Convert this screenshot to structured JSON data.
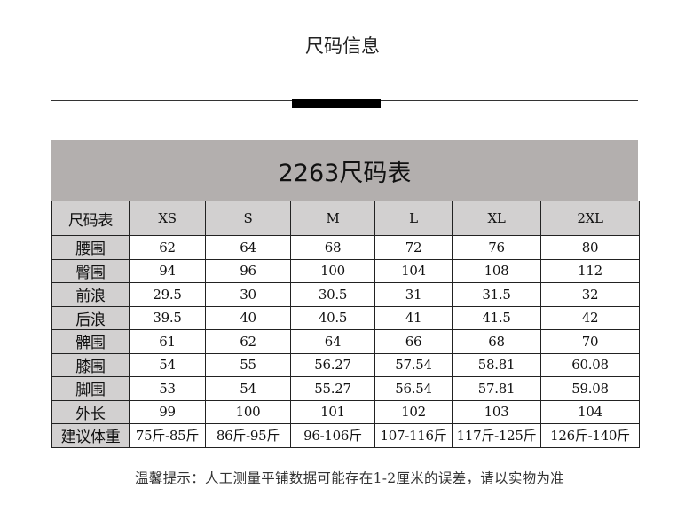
{
  "page": {
    "title": "尺码信息",
    "table_title": "2263尺码表",
    "footer_note": "温馨提示：人工测量平铺数据可能存在1-2厘米的误差，请以实物为准"
  },
  "table": {
    "header": [
      "尺码表",
      "XS",
      "S",
      "M",
      "L",
      "XL",
      "2XL"
    ],
    "rows": [
      [
        "腰围",
        "62",
        "64",
        "68",
        "72",
        "76",
        "80"
      ],
      [
        "臀围",
        "94",
        "96",
        "100",
        "104",
        "108",
        "112"
      ],
      [
        "前浪",
        "29.5",
        "30",
        "30.5",
        "31",
        "31.5",
        "32"
      ],
      [
        "后浪",
        "39.5",
        "40",
        "40.5",
        "41",
        "41.5",
        "42"
      ],
      [
        "髀围",
        "61",
        "62",
        "64",
        "66",
        "68",
        "70"
      ],
      [
        "膝围",
        "54",
        "55",
        "56.27",
        "57.54",
        "58.81",
        "60.08"
      ],
      [
        "脚围",
        "53",
        "54",
        "55.27",
        "56.54",
        "57.81",
        "59.08"
      ],
      [
        "外长",
        "99",
        "100",
        "101",
        "102",
        "103",
        "104"
      ],
      [
        "建议体重",
        "75斤-85斤",
        "86斤-95斤",
        "96-106斤",
        "107-116斤",
        "117斤-125斤",
        "126斤-140斤"
      ]
    ]
  },
  "colors": {
    "band": "#b3afae",
    "label_cell": "#d2d0d0"
  }
}
